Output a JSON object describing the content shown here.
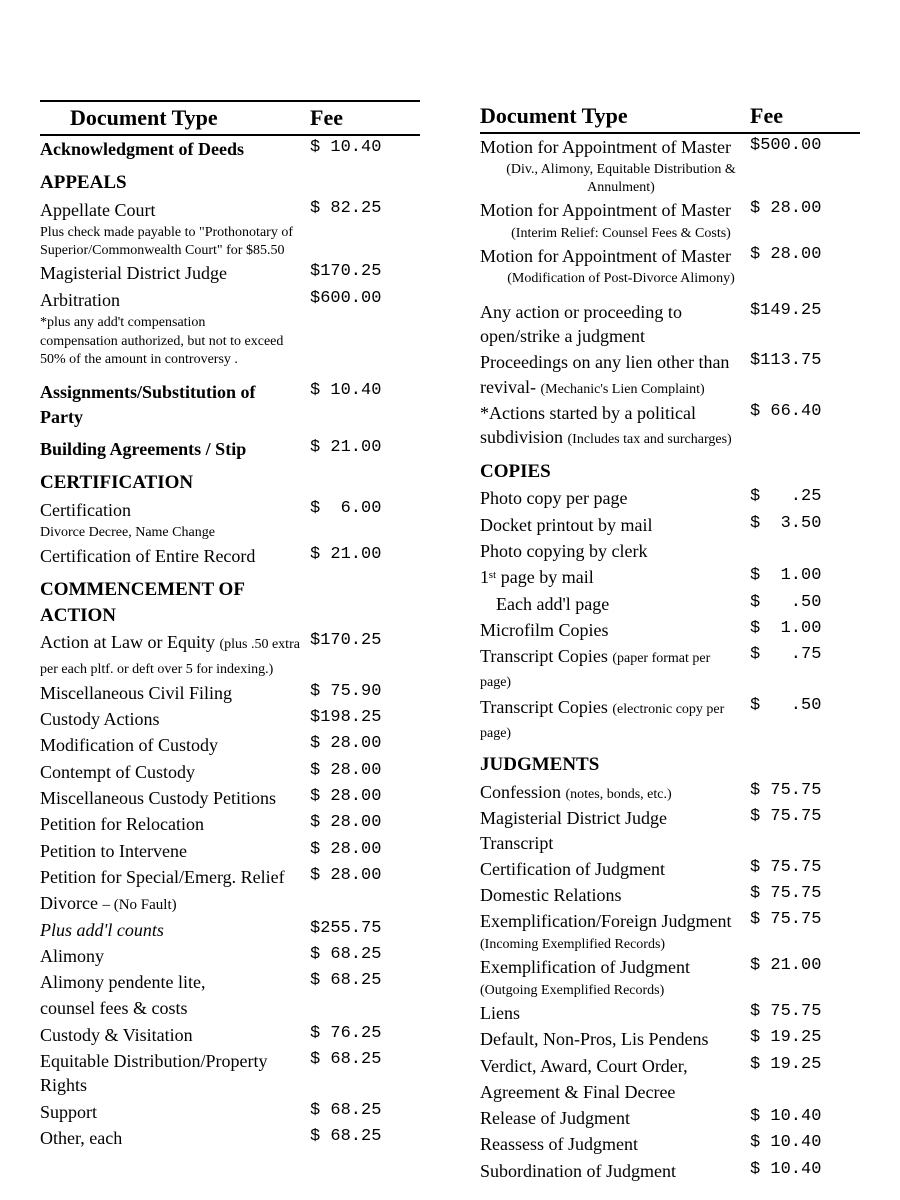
{
  "headers": {
    "docType": "Document Type",
    "fee": "Fee"
  },
  "left": [
    {
      "label": "Acknowledgment of Deeds",
      "fee": "$ 10.40",
      "class": "bold"
    },
    {
      "label": "APPEALS",
      "class": "section"
    },
    {
      "label": "Appellate Court",
      "fee": "$ 82.25"
    },
    {
      "label": "Plus check made payable to \"Prothonotary of Superior/Commonwealth Court\" for $85.50",
      "class": "sub"
    },
    {
      "label": "Magisterial District Judge",
      "fee": "$170.25"
    },
    {
      "label": "Arbitration",
      "fee": "$600.00"
    },
    {
      "label": "*plus any add't compensation",
      "class": "sub"
    },
    {
      "label": " compensation authorized, but not to exceed 50% of the amount in controversy .",
      "class": "sub"
    },
    {
      "class": "spacer"
    },
    {
      "label": "Assignments/Substitution of Party",
      "fee": "$ 10.40",
      "class": "bold"
    },
    {
      "class": "spacer-sm"
    },
    {
      "label": "Building Agreements / Stip",
      "fee": "$ 21.00",
      "class": "bold"
    },
    {
      "label": "CERTIFICATION",
      "class": "section"
    },
    {
      "label": "Certification",
      "fee": "$  6.00"
    },
    {
      "label": "Divorce Decree, Name Change",
      "class": "sub"
    },
    {
      "label": "Certification of Entire Record",
      "fee": "$ 21.00"
    },
    {
      "label": "COMMENCEMENT OF ACTION",
      "class": "section"
    },
    {
      "label": "Action at Law or Equity",
      "note": "(plus .50 extra per each pltf. or deft over 5 for indexing.)",
      "fee": "$170.25"
    },
    {
      "label": "Miscellaneous Civil Filing",
      "fee": "$ 75.90"
    },
    {
      "label": "Custody Actions",
      "fee": "$198.25"
    },
    {
      "label": "Modification of Custody",
      "fee": "$ 28.00"
    },
    {
      "label": "Contempt of Custody",
      "fee": "$ 28.00"
    },
    {
      "label": "Miscellaneous Custody Petitions",
      "fee": "$ 28.00"
    },
    {
      "label": "Petition for Relocation",
      "fee": "$ 28.00"
    },
    {
      "label": "Petition to Intervene",
      "fee": "$ 28.00"
    },
    {
      "label": "Petition for Special/Emerg. Relief",
      "fee": "$ 28.00"
    },
    {
      "label": "Divorce",
      "note2": "– (No Fault)"
    },
    {
      "label": "Plus add'l counts",
      "fee": "$255.75",
      "class": "italic"
    },
    {
      "label": "Alimony",
      "fee": "$ 68.25"
    },
    {
      "label": "Alimony pendente lite,",
      "fee": "$ 68.25"
    },
    {
      "label": "counsel fees & costs"
    },
    {
      "label": "Custody & Visitation",
      "fee": "$ 76.25"
    },
    {
      "label": "Equitable Distribution/Property Rights",
      "fee": "$ 68.25"
    },
    {
      "label": "Support",
      "fee": "$ 68.25"
    },
    {
      "label": "Other, each",
      "fee": "$ 68.25"
    }
  ],
  "right": [
    {
      "label": "Motion for Appointment of Master",
      "fee": "$500.00"
    },
    {
      "label": "(Div., Alimony, Equitable Distribution &   Annulment)",
      "class": "center-sub"
    },
    {
      "label": "Motion for Appointment of Master",
      "fee": "$ 28.00"
    },
    {
      "label": "(Interim Relief: Counsel Fees & Costs)",
      "class": "center-sub"
    },
    {
      "label": "Motion for Appointment of Master",
      "fee": "$ 28.00"
    },
    {
      "label": "(Modification of Post-Divorce Alimony)",
      "class": "center-sub"
    },
    {
      "class": "spacer"
    },
    {
      "label": "Any action or proceeding to open/strike a judgment",
      "fee": "$149.25"
    },
    {
      "label": "Proceedings on any lien other than revival-",
      "note": "(Mechanic's Lien Complaint)",
      "fee": "$113.75"
    },
    {
      "label": "*Actions started by a political subdivision",
      "note": "(Includes tax and surcharges)",
      "fee": "$ 66.40"
    },
    {
      "label": "COPIES",
      "class": "section"
    },
    {
      "label": "Photo copy per page",
      "fee": "$   .25"
    },
    {
      "label": "Docket printout by mail",
      "fee": "$  3.50"
    },
    {
      "label": "Photo copying by clerk"
    },
    {
      "label": "1ˢᵗ page by mail",
      "fee": "$  1.00"
    },
    {
      "label": "Each add'l page",
      "fee": "$   .50",
      "class": "indent"
    },
    {
      "label": "Microfilm Copies",
      "fee": "$  1.00"
    },
    {
      "label": "Transcript Copies",
      "note": "(paper format per page)",
      "fee": "$   .75"
    },
    {
      "label": "Transcript Copies",
      "note": "(electronic copy per page)",
      "fee": "$   .50"
    },
    {
      "label": "JUDGMENTS",
      "class": "section"
    },
    {
      "label": "Confession",
      "note": "(notes, bonds, etc.)",
      "fee": "$ 75.75"
    },
    {
      "label": "Magisterial District Judge Transcript",
      "fee": "$ 75.75"
    },
    {
      "label": "Certification of Judgment",
      "fee": "$ 75.75"
    },
    {
      "label": "Domestic Relations",
      "fee": "$ 75.75"
    },
    {
      "label": "Exemplification/Foreign Judgment",
      "fee": "$ 75.75"
    },
    {
      "label": "(Incoming Exemplified Records)",
      "class": "sub"
    },
    {
      "label": "Exemplification of Judgment",
      "fee": "$ 21.00"
    },
    {
      "label": "(Outgoing Exemplified Records)",
      "class": "sub"
    },
    {
      "label": "Liens",
      "fee": "$ 75.75"
    },
    {
      "label": "Default, Non-Pros,  Lis Pendens",
      "fee": "$ 19.25"
    },
    {
      "label": "Verdict, Award, Court Order,",
      "fee": "$ 19.25"
    },
    {
      "label": "Agreement & Final Decree"
    },
    {
      "label": "Release of Judgment",
      "fee": "$ 10.40"
    },
    {
      "label": "Reassess of Judgment",
      "fee": "$ 10.40"
    },
    {
      "label": "Subordination of Judgment",
      "fee": "$ 10.40"
    }
  ]
}
